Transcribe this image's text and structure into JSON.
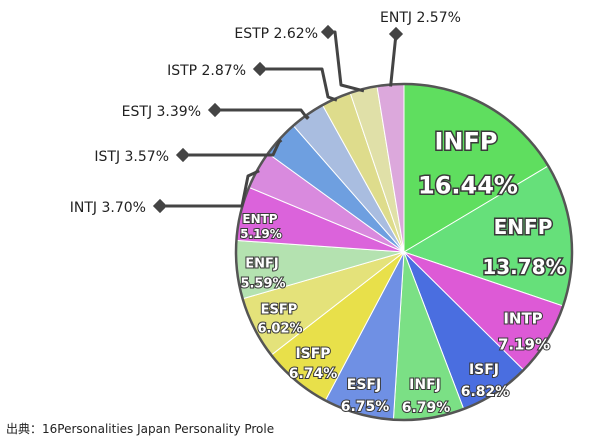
{
  "source": "出典：16Personalities Japan Personality Prole",
  "chart_data": {
    "type": "pie",
    "title": "",
    "start": "12 o'clock",
    "direction": "clockwise",
    "slices": [
      {
        "label": "INFP",
        "value": 16.44,
        "display": "16.44%",
        "color": "#5fde5f",
        "label_style": "inside-large"
      },
      {
        "label": "ENFP",
        "value": 13.78,
        "display": "13.78%",
        "color": "#66e07a",
        "label_style": "inside-large"
      },
      {
        "label": "INTP",
        "value": 7.19,
        "display": "7.19%",
        "color": "#dd5ad6",
        "label_style": "inside"
      },
      {
        "label": "ISFJ",
        "value": 6.82,
        "display": "6.82%",
        "color": "#4a6ee0",
        "label_style": "inside"
      },
      {
        "label": "INFJ",
        "value": 6.79,
        "display": "6.79%",
        "color": "#7be085",
        "label_style": "inside"
      },
      {
        "label": "ESFJ",
        "value": 6.75,
        "display": "6.75%",
        "color": "#6f90e4",
        "label_style": "inside"
      },
      {
        "label": "ISFP",
        "value": 6.74,
        "display": "6.74%",
        "color": "#e8e04a",
        "label_style": "inside"
      },
      {
        "label": "ESFP",
        "value": 6.02,
        "display": "6.02%",
        "color": "#e4e27a",
        "label_style": "inside"
      },
      {
        "label": "ENFJ",
        "value": 5.59,
        "display": "5.59%",
        "color": "#b4e2b0",
        "label_style": "inside"
      },
      {
        "label": "ENTP",
        "value": 5.19,
        "display": "5.19%",
        "color": "#db63db",
        "label_style": "inside"
      },
      {
        "label": "INTJ",
        "value": 3.7,
        "display": "3.70%",
        "color": "#d98ade",
        "label_style": "callout"
      },
      {
        "label": "ISTJ",
        "value": 3.57,
        "display": "3.57%",
        "color": "#6e9fe0",
        "label_style": "callout"
      },
      {
        "label": "ESTJ",
        "value": 3.39,
        "display": "3.39%",
        "color": "#a9bde0",
        "label_style": "callout"
      },
      {
        "label": "ISTP",
        "value": 2.87,
        "display": "2.87%",
        "color": "#dedc8c",
        "label_style": "callout"
      },
      {
        "label": "ESTP",
        "value": 2.62,
        "display": "2.62%",
        "color": "#e0e0a8",
        "label_style": "callout"
      },
      {
        "label": "ENTJ",
        "value": 2.57,
        "display": "2.57%",
        "color": "#dca8dc",
        "label_style": "callout"
      }
    ],
    "colors": {
      "outline": "#555555",
      "label_text": "#ffffff",
      "label_shadow": "#3a3a3a",
      "callout_line": "#444444",
      "callout_text": "#222222",
      "plot_background": "#ffffff"
    }
  }
}
